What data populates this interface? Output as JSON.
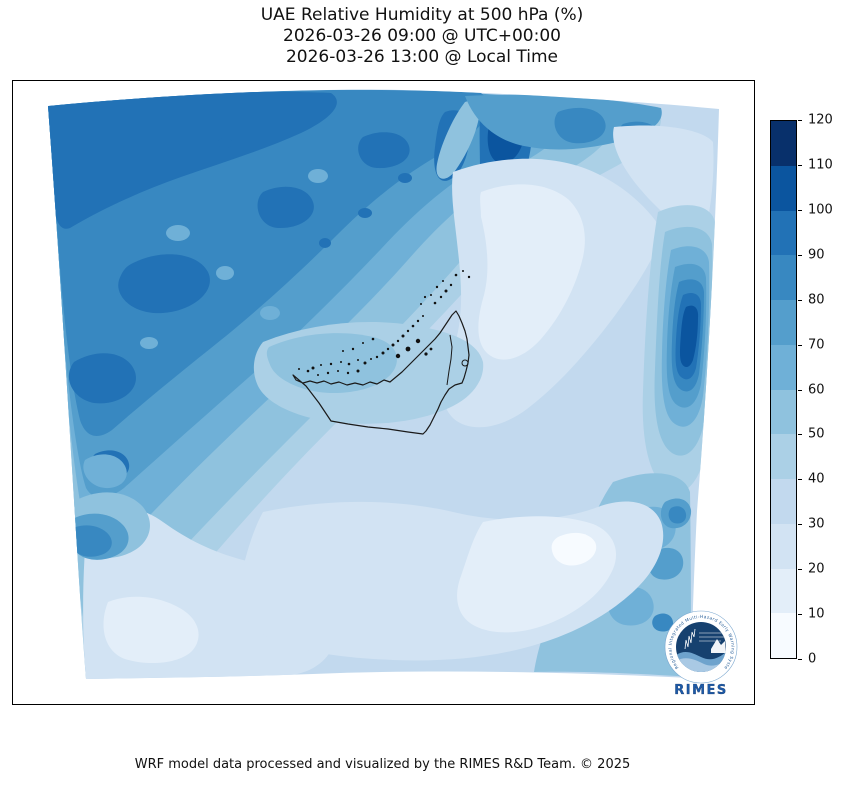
{
  "figure": {
    "title_line1": "UAE Relative Humidity at 500 hPa (%)",
    "title_line2": "2026-03-26 09:00 @ UTC+00:00",
    "title_line3": "2026-03-26 13:00 @ Local Time",
    "footer": "WRF model data processed and visualized by the RIMES R&D Team. © 2025"
  },
  "chart_data": {
    "type": "heatmap",
    "subtype": "filled-contour-weather-map",
    "title": "UAE Relative Humidity at 500 hPa (%)",
    "timestamp_utc": "2026-03-26 09:00 @ UTC+00:00",
    "timestamp_local": "2026-03-26 13:00 @ Local Time",
    "variable": "Relative Humidity",
    "units": "%",
    "pressure_level": "500 hPa",
    "grid": false,
    "legend_position": "right",
    "overlay": "United Arab Emirates boundary outline with coastal islands",
    "colorbar": {
      "min": 0,
      "max": 120,
      "step": 10,
      "ticks": [
        0,
        10,
        20,
        30,
        40,
        50,
        60,
        70,
        80,
        90,
        100,
        110,
        120
      ],
      "levels": [
        {
          "range": [
            0,
            10
          ],
          "color": "#f7fbff"
        },
        {
          "range": [
            10,
            20
          ],
          "color": "#e3eef9"
        },
        {
          "range": [
            20,
            30
          ],
          "color": "#d2e3f3"
        },
        {
          "range": [
            30,
            40
          ],
          "color": "#c2d9ee"
        },
        {
          "range": [
            40,
            50
          ],
          "color": "#abd0e6"
        },
        {
          "range": [
            50,
            60
          ],
          "color": "#8fc2de"
        },
        {
          "range": [
            60,
            70
          ],
          "color": "#6fb0d7"
        },
        {
          "range": [
            70,
            80
          ],
          "color": "#549ecc"
        },
        {
          "range": [
            80,
            90
          ],
          "color": "#3888c1"
        },
        {
          "range": [
            90,
            100
          ],
          "color": "#2272b6"
        },
        {
          "range": [
            100,
            110
          ],
          "color": "#0b559f"
        },
        {
          "range": [
            110,
            120
          ],
          "color": "#08306b"
        }
      ]
    },
    "regions_depicted": [
      {
        "area": "northwest quadrant",
        "humidity_range": [
          60,
          100
        ]
      },
      {
        "area": "north-center narrow streaks",
        "humidity_range": [
          100,
          110
        ]
      },
      {
        "area": "top edge band",
        "humidity_range": [
          70,
          90
        ]
      },
      {
        "area": "northeast corner",
        "humidity_range": [
          20,
          40
        ]
      },
      {
        "area": "center / around UAE outline",
        "humidity_range": [
          30,
          60
        ]
      },
      {
        "area": "center-right pale zone",
        "humidity_range": [
          10,
          30
        ]
      },
      {
        "area": "east edge blob",
        "humidity_range": [
          90,
          110
        ]
      },
      {
        "area": "south-center lowlands",
        "humidity_range": [
          0,
          30
        ]
      },
      {
        "area": "southwest corner",
        "humidity_range": [
          20,
          40
        ]
      },
      {
        "area": "southeast corner",
        "humidity_range": [
          40,
          70
        ]
      },
      {
        "area": "west edge lower wedge",
        "humidity_range": [
          70,
          90
        ]
      }
    ]
  },
  "logo": {
    "name": "RIMES",
    "wordmark": "RIMES",
    "ring_text": "Regional Integrated Multi-Hazard Early Warning System",
    "accent_color": "#1d5aa8",
    "inner_color": "#16416f"
  }
}
